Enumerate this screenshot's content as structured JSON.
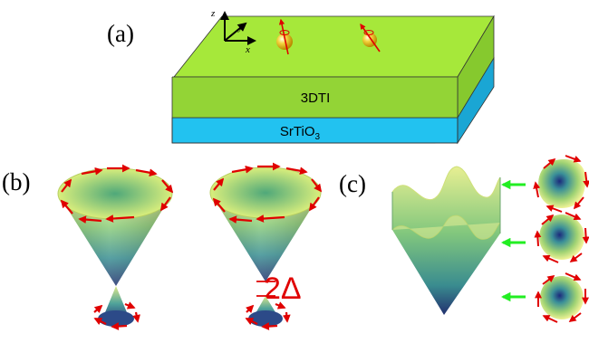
{
  "figure": {
    "panels": {
      "a": {
        "label": "(a)"
      },
      "b": {
        "label": "(b)"
      },
      "c": {
        "label": "(c)"
      }
    },
    "slab": {
      "top_layer_label": "3DTI",
      "substrate_label": "SrTiO",
      "substrate_subscript": "3",
      "top_color": "#a6e83a",
      "substrate_color": "#22c2f0"
    },
    "axes": {
      "z": "z",
      "y": "y",
      "x": "x"
    },
    "gap_label": "2Δ",
    "colors": {
      "spin_arrow": "#e00000",
      "guide_arrow": "#22ee22"
    }
  }
}
